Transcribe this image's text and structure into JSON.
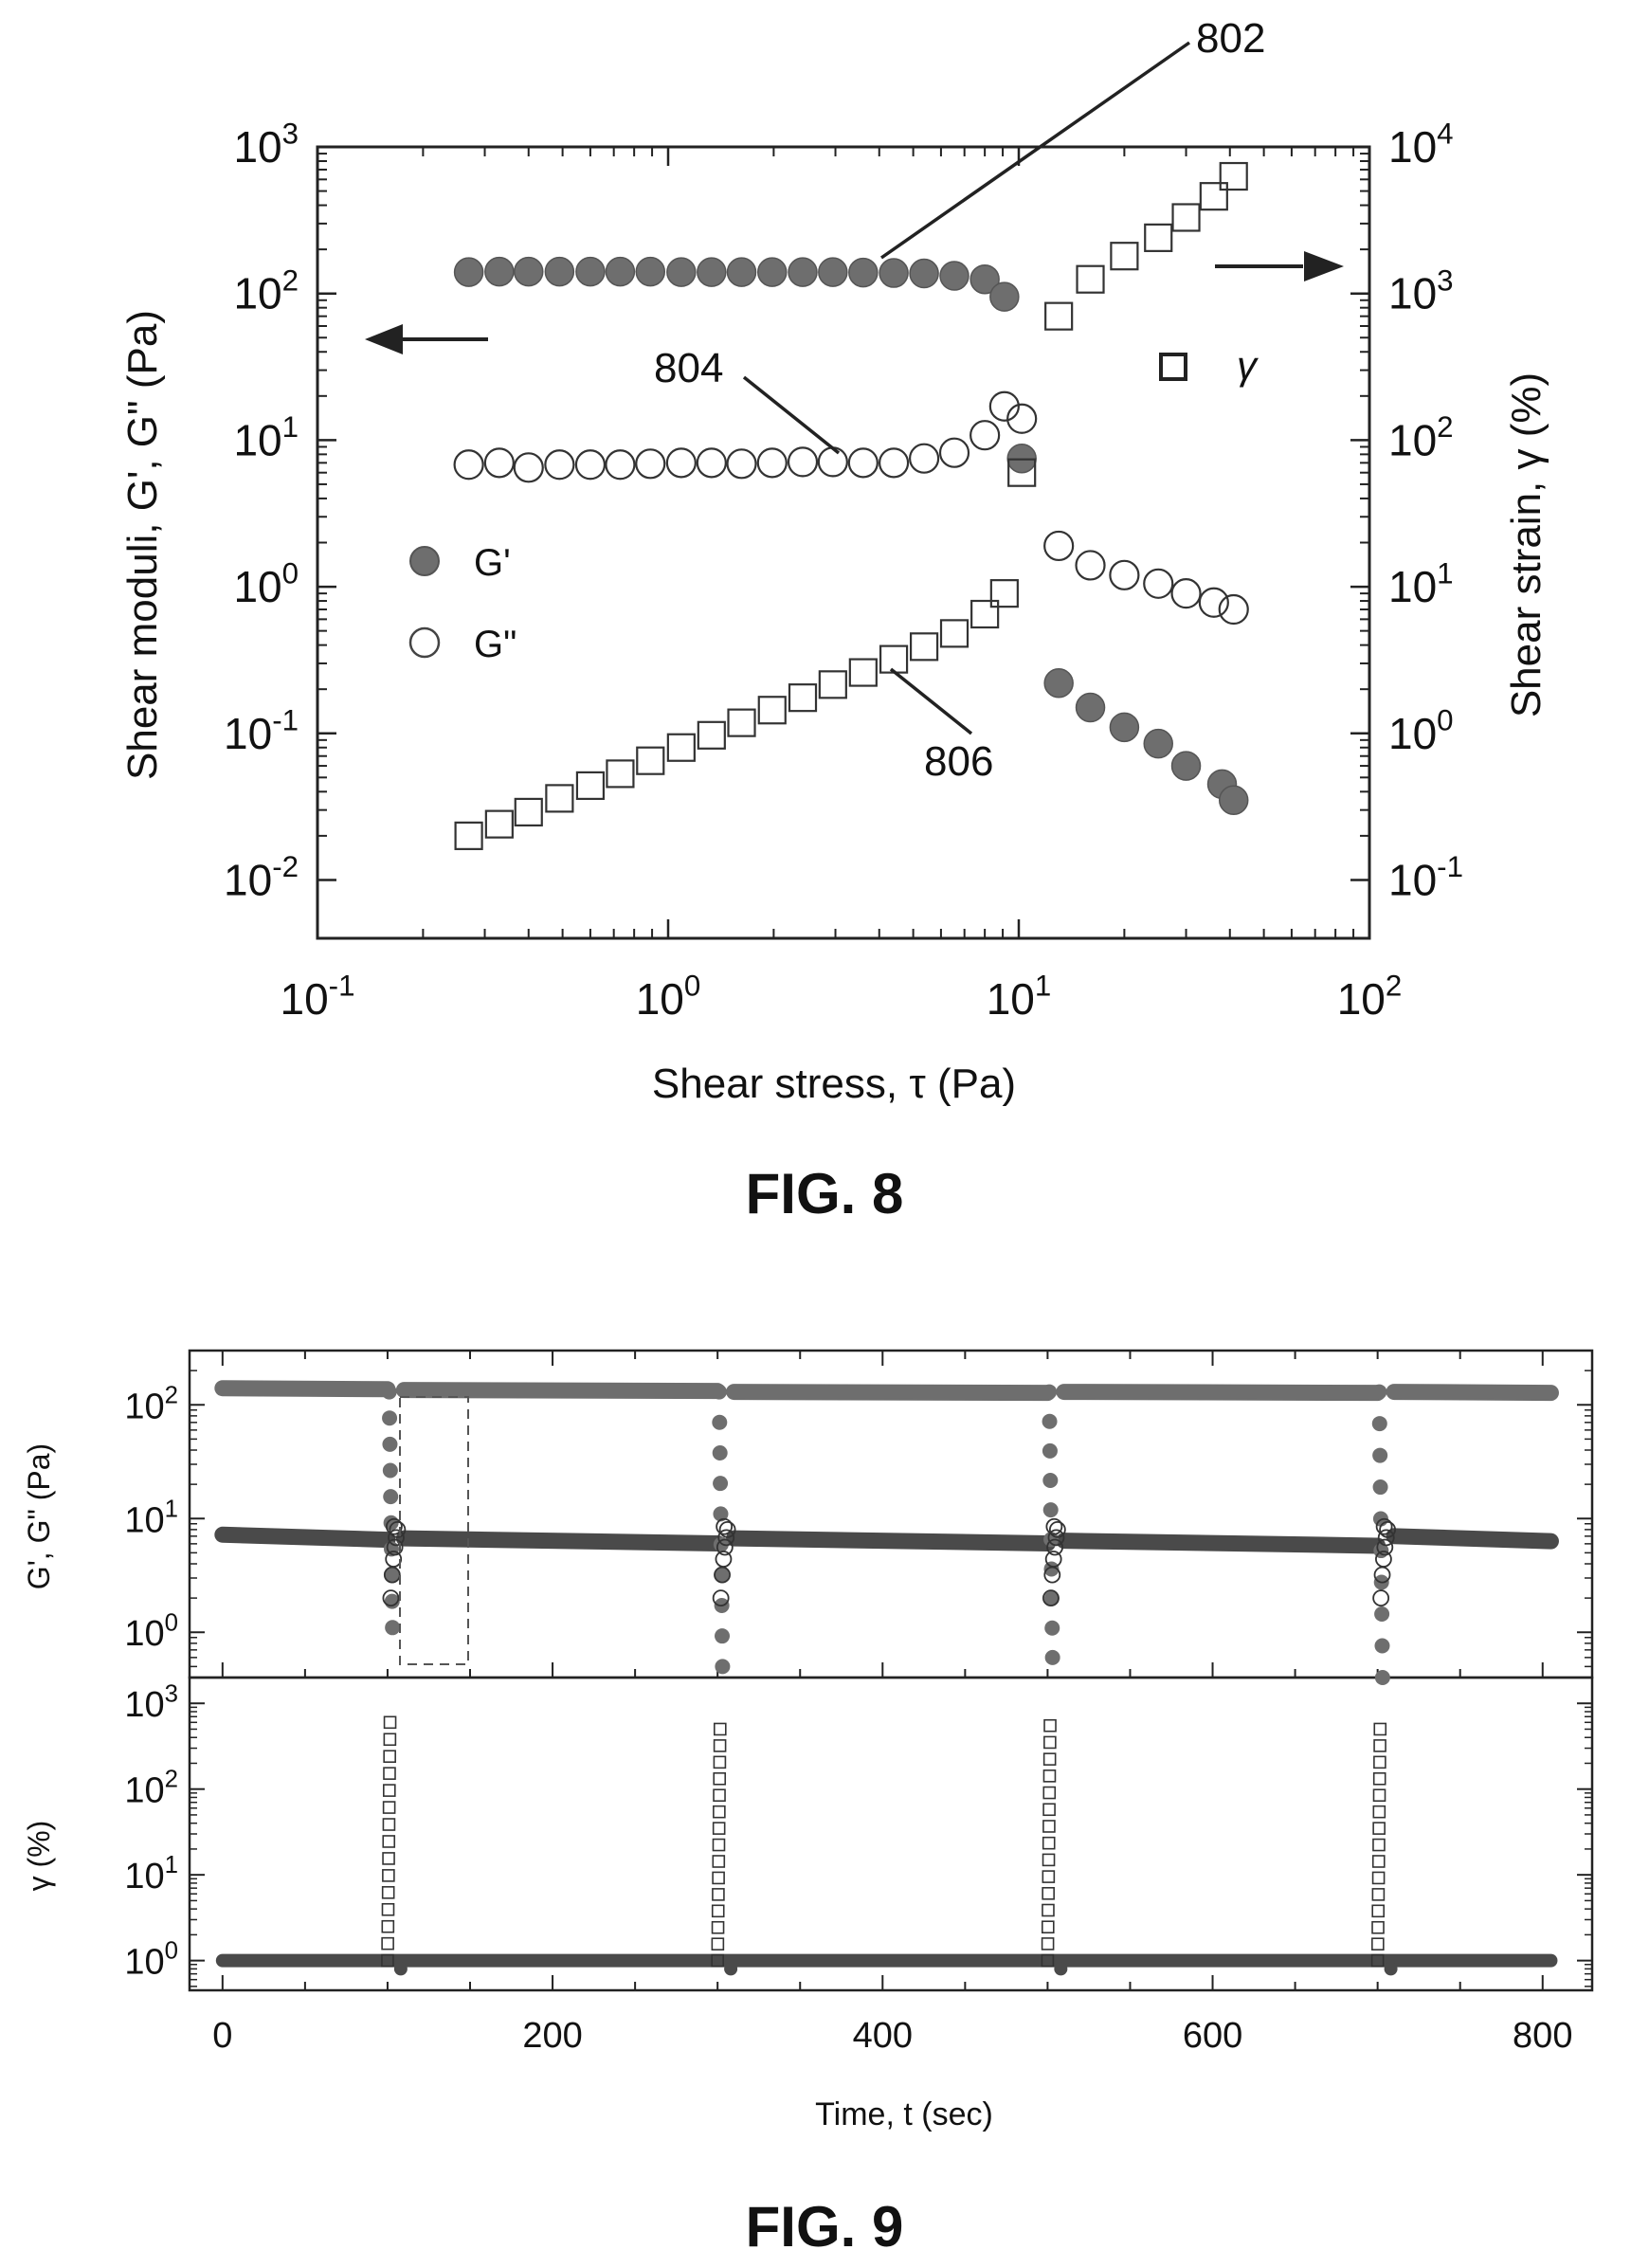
{
  "chart_data": [
    {
      "figure": "FIG. 8",
      "type": "scatter",
      "xlabel": "Shear stress, τ (Pa)",
      "ylabel_left": "Shear moduli, G', G\" (Pa)",
      "ylabel_right": "Shear strain, γ (%)",
      "xscale": "log",
      "yscale_left": "log",
      "yscale_right": "log",
      "xlim": [
        0.1,
        100
      ],
      "ylim_left": [
        0.004,
        1000
      ],
      "ylim_right": [
        0.04,
        10000
      ],
      "x_ticks": [
        "10-1",
        "100",
        "101",
        "102"
      ],
      "y_ticks_left": [
        "10-2",
        "10-1",
        "100",
        "101",
        "102",
        "103"
      ],
      "y_ticks_right": [
        "10-1",
        "100",
        "101",
        "102",
        "103",
        "104"
      ],
      "legend": [
        {
          "marker": "filled-circle",
          "label": "G'"
        },
        {
          "marker": "open-circle",
          "label": "G\""
        },
        {
          "marker": "open-square",
          "label": "γ"
        }
      ],
      "annotations": [
        "802",
        "804",
        "806"
      ],
      "series": [
        {
          "name": "G'",
          "marker": "filled-circle",
          "axis": "left",
          "x": [
            0.27,
            0.33,
            0.4,
            0.49,
            0.6,
            0.73,
            0.89,
            1.09,
            1.33,
            1.62,
            1.98,
            2.42,
            2.95,
            3.6,
            4.4,
            5.37,
            6.55,
            8.0,
            9.1,
            10.2,
            13,
            16,
            20,
            25,
            30,
            38,
            41
          ],
          "values": [
            140,
            141,
            141,
            141,
            141,
            141,
            141,
            140,
            140,
            140,
            140,
            140,
            140,
            139,
            138,
            137,
            132,
            125,
            95,
            7.5,
            0.22,
            0.15,
            0.11,
            0.085,
            0.06,
            0.045,
            0.035
          ]
        },
        {
          "name": "G\"",
          "marker": "open-circle",
          "axis": "left",
          "x": [
            0.27,
            0.33,
            0.4,
            0.49,
            0.6,
            0.73,
            0.89,
            1.09,
            1.33,
            1.62,
            1.98,
            2.42,
            2.95,
            3.6,
            4.4,
            5.37,
            6.55,
            8.0,
            9.1,
            10.2,
            13,
            16,
            20,
            25,
            30,
            36,
            41
          ],
          "values": [
            6.8,
            7.0,
            6.5,
            6.8,
            6.8,
            6.8,
            6.9,
            7.0,
            7.0,
            6.9,
            7.0,
            7.1,
            7.1,
            7.0,
            7.0,
            7.5,
            8.2,
            10.8,
            17,
            14,
            1.9,
            1.4,
            1.2,
            1.05,
            0.9,
            0.78,
            0.7
          ]
        },
        {
          "name": "γ",
          "marker": "open-square",
          "axis": "right",
          "x": [
            0.27,
            0.33,
            0.4,
            0.49,
            0.6,
            0.73,
            0.89,
            1.09,
            1.33,
            1.62,
            1.98,
            2.42,
            2.95,
            3.6,
            4.4,
            5.37,
            6.55,
            8.0,
            9.1,
            10.2,
            13,
            16,
            20,
            25,
            30,
            36,
            41
          ],
          "values": [
            0.2,
            0.24,
            0.29,
            0.36,
            0.44,
            0.53,
            0.65,
            0.8,
            0.97,
            1.18,
            1.44,
            1.75,
            2.15,
            2.6,
            3.2,
            3.9,
            4.8,
            6.5,
            9.0,
            60,
            700,
            1250,
            1800,
            2400,
            3300,
            4600,
            6300
          ]
        }
      ]
    },
    {
      "figure": "FIG. 9",
      "type": "scatter",
      "panels": [
        {
          "name": "moduli",
          "ylabel": "G', G\" (Pa)",
          "yscale": "log",
          "ylim": [
            0.4,
            300
          ],
          "y_ticks": [
            "100",
            "101",
            "102"
          ],
          "series": [
            {
              "name": "G'",
              "marker": "filled-circle",
              "baseline_segments": [
                [
                  0,
                  100,
                  140
                ],
                [
                  110,
                  300,
                  135
                ],
                [
                  310,
                  500,
                  130
                ],
                [
                  510,
                  700,
                  130
                ],
                [
                  710,
                  805,
                  130
                ]
              ],
              "drop_times": [
                100,
                300,
                500,
                700
              ],
              "drop_min": [
                1.1,
                0.5,
                0.6,
                0.4
              ]
            },
            {
              "name": "G\"",
              "marker": "open-circle",
              "baseline_segments": [
                [
                  0,
                  100,
                  7.0
                ],
                [
                  110,
                  300,
                  6.5
                ],
                [
                  310,
                  500,
                  6.5
                ],
                [
                  510,
                  700,
                  6.2
                ],
                [
                  710,
                  805,
                  6.8
                ]
              ],
              "drop_times": [
                100,
                300,
                500,
                700
              ],
              "peak_after_drop": 8.5
            }
          ],
          "highlight_box": {
            "x_range": [
              88,
              128
            ],
            "y_range": [
              0.7,
              110
            ]
          }
        },
        {
          "name": "strain",
          "ylabel": "γ (%)",
          "yscale": "log",
          "ylim": [
            0.45,
            2000
          ],
          "y_ticks": [
            "100",
            "101",
            "102",
            "103"
          ],
          "series": [
            {
              "name": "γ",
              "marker": "open-square",
              "baseline": 1.0,
              "spike_times": [
                100,
                300,
                500,
                700
              ],
              "spike_max": [
                600,
                500,
                550,
                500
              ]
            }
          ]
        }
      ],
      "xlabel": "Time, t (sec)",
      "xlim": [
        -20,
        830
      ],
      "x_ticks": [
        0,
        200,
        400,
        600,
        800
      ]
    }
  ],
  "labels": {
    "fig8_caption": "FIG. 8",
    "fig9_caption": "FIG. 9",
    "fig8_xlabel": "Shear stress, τ (Pa)",
    "fig8_ylabel_left": "Shear moduli, G', G\" (Pa)",
    "fig8_ylabel_right": "Shear strain, γ (%)",
    "fig8_legend_g1": "G'",
    "fig8_legend_g2": "G\"",
    "fig8_legend_gamma": "γ",
    "ann_802": "802",
    "ann_804": "804",
    "ann_806": "806",
    "fig9_xlabel": "Time, t (sec)",
    "fig9_ylabel_top": "G', G\" (Pa)",
    "fig9_ylabel_bottom": "γ (%)"
  },
  "colors": {
    "filled_marker": "#6e6e6e",
    "dark_marker": "#4a4a4a",
    "outline": "#333333",
    "axis": "#222222"
  }
}
